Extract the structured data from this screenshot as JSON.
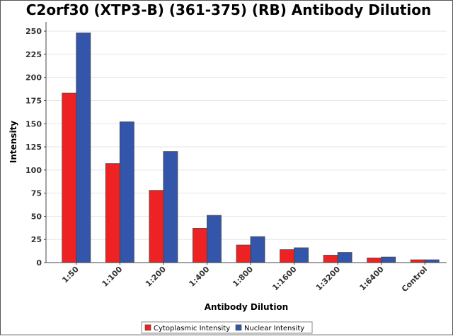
{
  "chart_data": {
    "type": "bar",
    "title": "C2orf30 (XTP3-B) (361-375) (RB) Antibody Dilution",
    "xlabel": "Antibody Dilution",
    "ylabel": "Intensity",
    "ylim": [
      0,
      260
    ],
    "yticks": [
      0,
      25,
      50,
      75,
      100,
      125,
      150,
      175,
      200,
      225,
      250
    ],
    "categories": [
      "1:50",
      "1:100",
      "1:200",
      "1:400",
      "1:800",
      "1:1600",
      "1:3200",
      "1:6400",
      "Control"
    ],
    "series": [
      {
        "name": "Cytoplasmic Intensity",
        "color": "#ee2222",
        "values": [
          183,
          107,
          78,
          37,
          19,
          14,
          8,
          5,
          3
        ]
      },
      {
        "name": "Nuclear Intensity",
        "color": "#3355aa",
        "values": [
          248,
          152,
          120,
          51,
          28,
          16,
          11,
          6,
          3
        ]
      }
    ],
    "grid": true,
    "legend_position": "bottom"
  }
}
